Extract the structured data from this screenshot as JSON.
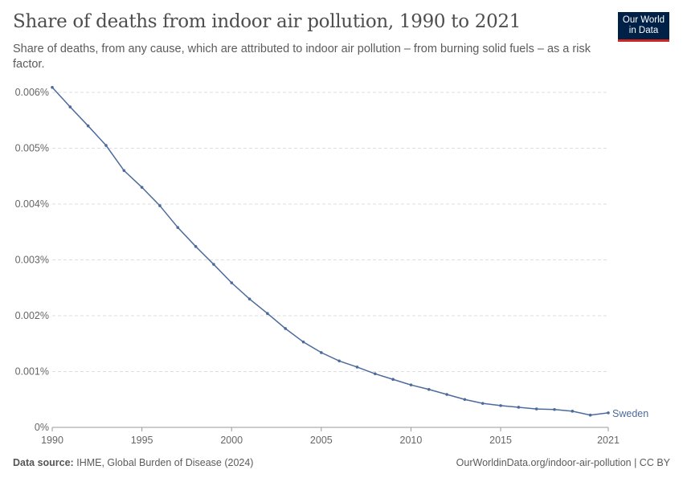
{
  "header": {
    "title": "Share of deaths from indoor air pollution, 1990 to 2021",
    "subtitle": "Share of deaths, from any cause, which are attributed to indoor air pollution – from burning solid fuels – as a risk factor."
  },
  "logo": {
    "line1": "Our World",
    "line2": "in Data"
  },
  "footer": {
    "source_label": "Data source:",
    "source": "IHME, Global Burden of Disease (2024)",
    "url": "OurWorldinData.org/indoor-air-pollution | CC BY"
  },
  "colors": {
    "series": "#4c6a9c",
    "logo_bg": "#002147",
    "logo_accent": "#ce261e"
  },
  "chart_data": {
    "type": "line",
    "title": "Share of deaths from indoor air pollution, 1990 to 2021",
    "ylim": [
      0,
      0.006
    ],
    "xlim": [
      1990,
      2021
    ],
    "y_ticks": [
      {
        "v": 0,
        "label": "0%"
      },
      {
        "v": 0.001,
        "label": "0.001%"
      },
      {
        "v": 0.002,
        "label": "0.002%"
      },
      {
        "v": 0.003,
        "label": "0.003%"
      },
      {
        "v": 0.004,
        "label": "0.004%"
      },
      {
        "v": 0.005,
        "label": "0.005%"
      },
      {
        "v": 0.006,
        "label": "0.006%"
      }
    ],
    "x_ticks": [
      1990,
      1995,
      2000,
      2005,
      2010,
      2015,
      2021
    ],
    "grid": "horizontal dashed",
    "series": [
      {
        "name": "Sweden",
        "x": [
          1990,
          1991,
          1992,
          1993,
          1994,
          1995,
          1996,
          1997,
          1998,
          1999,
          2000,
          2001,
          2002,
          2003,
          2004,
          2005,
          2006,
          2007,
          2008,
          2009,
          2010,
          2011,
          2012,
          2013,
          2014,
          2015,
          2016,
          2017,
          2018,
          2019,
          2020,
          2021
        ],
        "values": [
          0.00609,
          0.00574,
          0.0054,
          0.00505,
          0.0046,
          0.0043,
          0.00397,
          0.00358,
          0.00324,
          0.00292,
          0.00259,
          0.0023,
          0.00204,
          0.00177,
          0.00153,
          0.00134,
          0.00119,
          0.00108,
          0.00096,
          0.00086,
          0.00076,
          0.00068,
          0.00059,
          0.0005,
          0.00043,
          0.00039,
          0.00036,
          0.00033,
          0.00032,
          0.00029,
          0.00022,
          0.00026
        ]
      }
    ]
  }
}
